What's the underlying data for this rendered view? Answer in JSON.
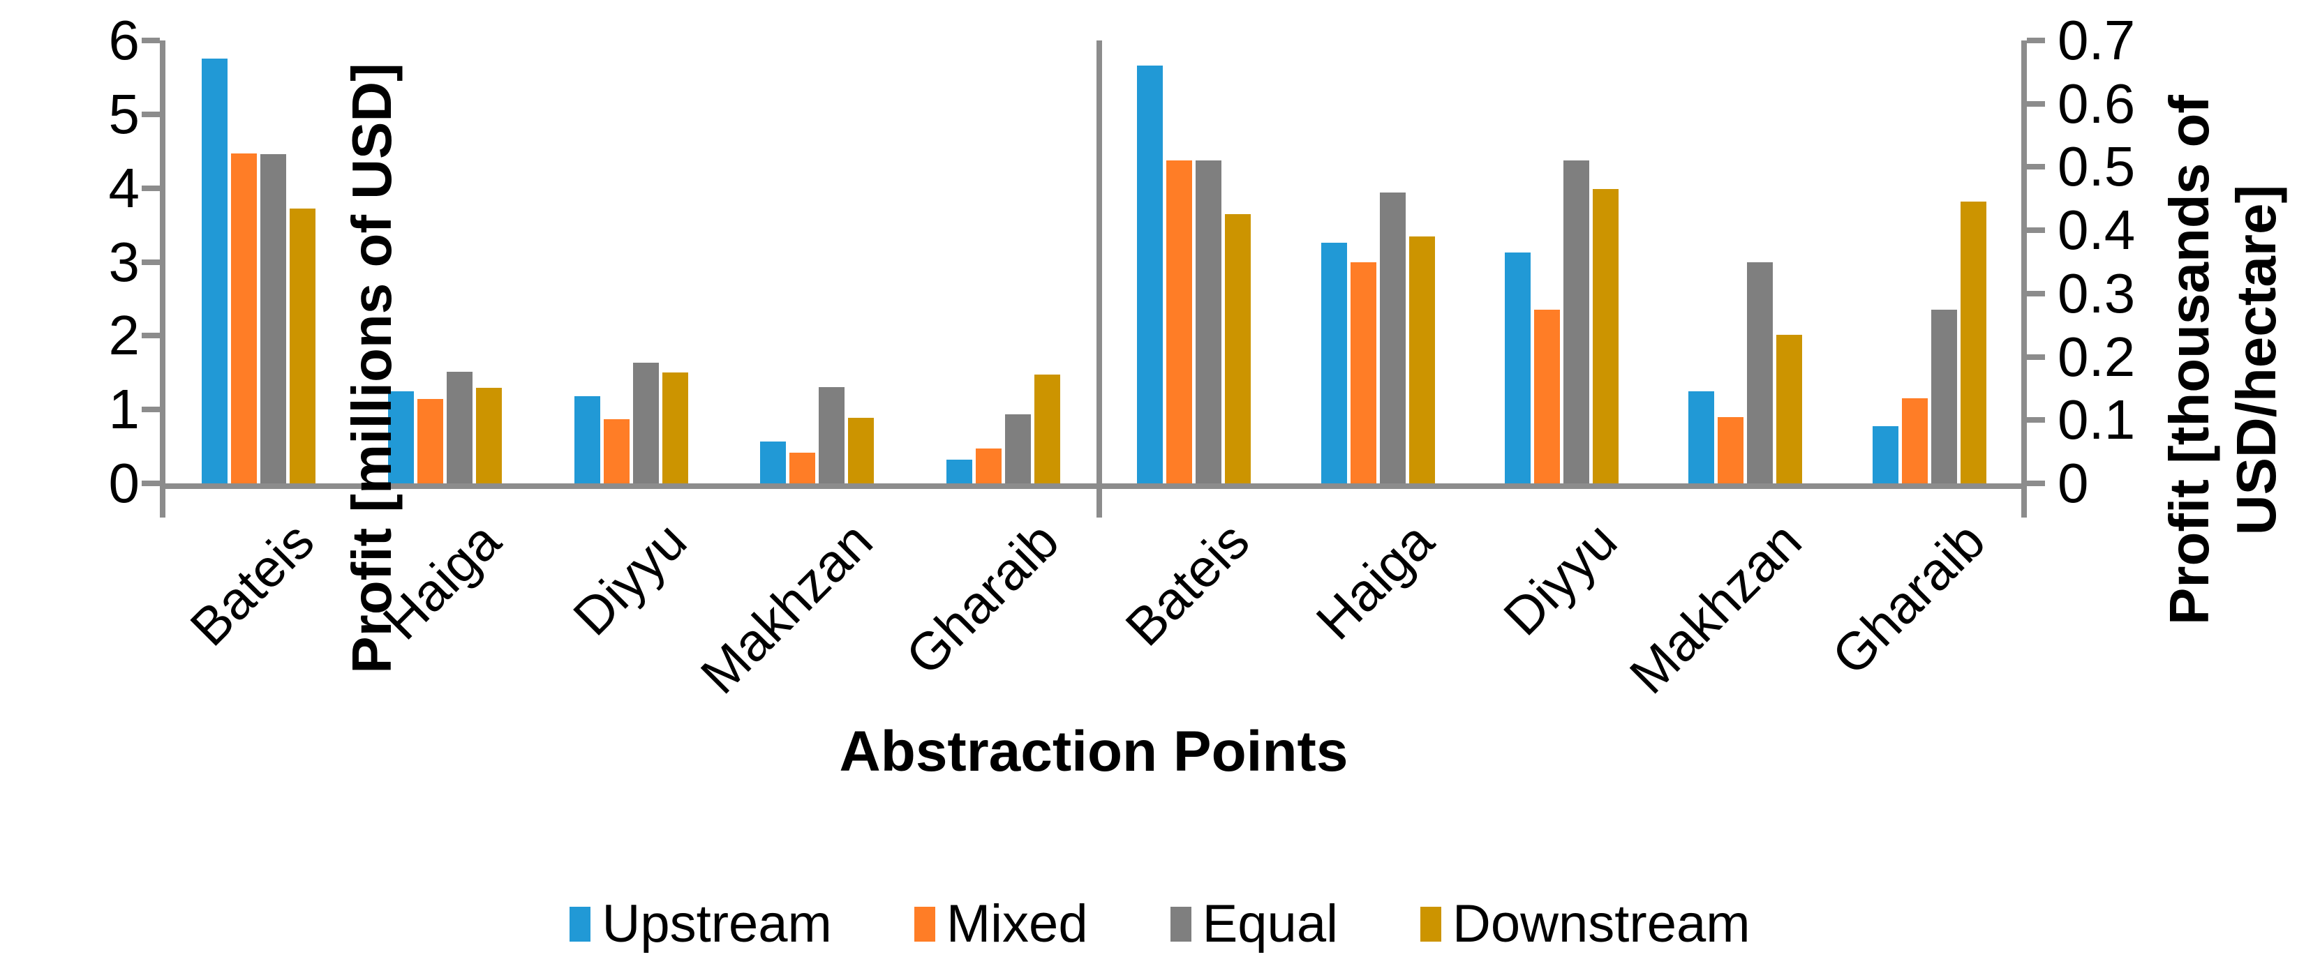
{
  "chart_data": {
    "type": "bar",
    "title": "",
    "xlabel": "Abstraction Points",
    "grid": false,
    "legend_position": "bottom",
    "categories": [
      "Bateis",
      "Haiga",
      "Diyyu",
      "Makhzan",
      "Gharaib"
    ],
    "series_names": [
      "Upstream",
      "Mixed",
      "Equal",
      "Downstream"
    ],
    "series_colors": [
      "#2199D6",
      "#FF7D26",
      "#7F7F7F",
      "#CC9400"
    ],
    "left_axis": {
      "label": "Profit [millions of USD]",
      "min": 0,
      "max": 6,
      "tick_step": 1,
      "tick_labels": [
        "0",
        "1",
        "2",
        "3",
        "4",
        "5",
        "6"
      ]
    },
    "right_axis": {
      "label_line1": "Profit [thousands of",
      "label_line2": "USD/hectare]",
      "min": 0,
      "max": 0.7,
      "tick_step": 0.1,
      "tick_labels": [
        "0",
        "0.1",
        "0.2",
        "0.3",
        "0.4",
        "0.5",
        "0.6",
        "0.7"
      ]
    },
    "panels": [
      {
        "name": "left-panel",
        "axis": "left",
        "units": "millions of USD",
        "series": [
          {
            "name": "Upstream",
            "values": [
              5.75,
              1.25,
              1.18,
              0.57,
              0.32
            ]
          },
          {
            "name": "Mixed",
            "values": [
              4.47,
              1.14,
              0.87,
              0.42,
              0.47
            ]
          },
          {
            "name": "Equal",
            "values": [
              4.46,
              1.51,
              1.63,
              1.3,
              0.94
            ]
          },
          {
            "name": "Downstream",
            "values": [
              3.72,
              1.29,
              1.5,
              0.89,
              1.47
            ]
          }
        ]
      },
      {
        "name": "right-panel",
        "axis": "right",
        "units": "thousands of USD/hectare",
        "series": [
          {
            "name": "Upstream",
            "values": [
              0.66,
              0.38,
              0.365,
              0.145,
              0.09
            ]
          },
          {
            "name": "Mixed",
            "values": [
              0.51,
              0.35,
              0.275,
              0.105,
              0.135
            ]
          },
          {
            "name": "Equal",
            "values": [
              0.51,
              0.46,
              0.51,
              0.35,
              0.275
            ]
          },
          {
            "name": "Downstream",
            "values": [
              0.425,
              0.39,
              0.465,
              0.235,
              0.445
            ]
          }
        ]
      }
    ],
    "legend": [
      "Upstream",
      "Mixed",
      "Equal",
      "Downstream"
    ],
    "axis_color": "#8C8C8C",
    "text_color": "#000000"
  },
  "layout_note": "dual-panel clustered column chart, shared baseline, left panel scaled by left axis, right panel by right axis"
}
